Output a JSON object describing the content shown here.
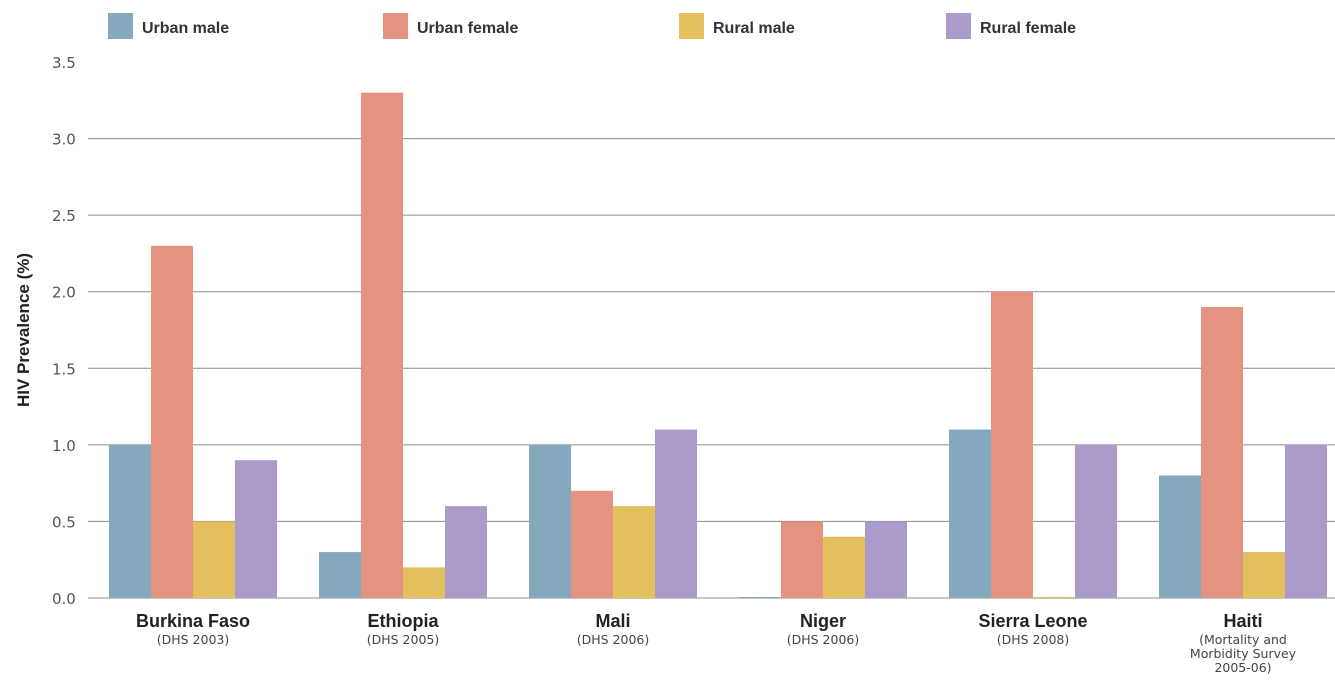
{
  "chart_data": {
    "type": "bar",
    "ylabel": "HIV Prevalence (%)",
    "xlabel": "",
    "ylim": [
      0,
      3.5
    ],
    "yticks": [
      "0.0",
      "0.5",
      "1.0",
      "1.5",
      "2.0",
      "2.5",
      "3.0",
      "3.5"
    ],
    "grid": true,
    "legend_position": "top",
    "categories": [
      {
        "name": "Burkina Faso",
        "sub": [
          "(DHS 2003)"
        ]
      },
      {
        "name": "Ethiopia",
        "sub": [
          "(DHS 2005)"
        ]
      },
      {
        "name": "Mali",
        "sub": [
          "(DHS 2006)"
        ]
      },
      {
        "name": "Niger",
        "sub": [
          "(DHS 2006)"
        ]
      },
      {
        "name": "Sierra Leone",
        "sub": [
          "(DHS 2008)"
        ]
      },
      {
        "name": "Haiti",
        "sub": [
          "(Mortality and",
          "Morbidity Survey",
          "2005-06)"
        ]
      }
    ],
    "series": [
      {
        "name": "Urban male",
        "color": "#84a9bf",
        "values": [
          1.0,
          0.3,
          1.0,
          0.0,
          1.1,
          0.8
        ]
      },
      {
        "name": "Urban female",
        "color": "#e39380",
        "values": [
          2.3,
          3.3,
          0.7,
          0.5,
          2.0,
          1.9
        ]
      },
      {
        "name": "Rural male",
        "color": "#e4bf5e",
        "values": [
          0.5,
          0.2,
          0.6,
          0.4,
          0.0,
          0.3
        ]
      },
      {
        "name": "Rural female",
        "color": "#ab9bca",
        "values": [
          0.9,
          0.6,
          1.1,
          0.5,
          1.0,
          1.0
        ]
      }
    ]
  }
}
